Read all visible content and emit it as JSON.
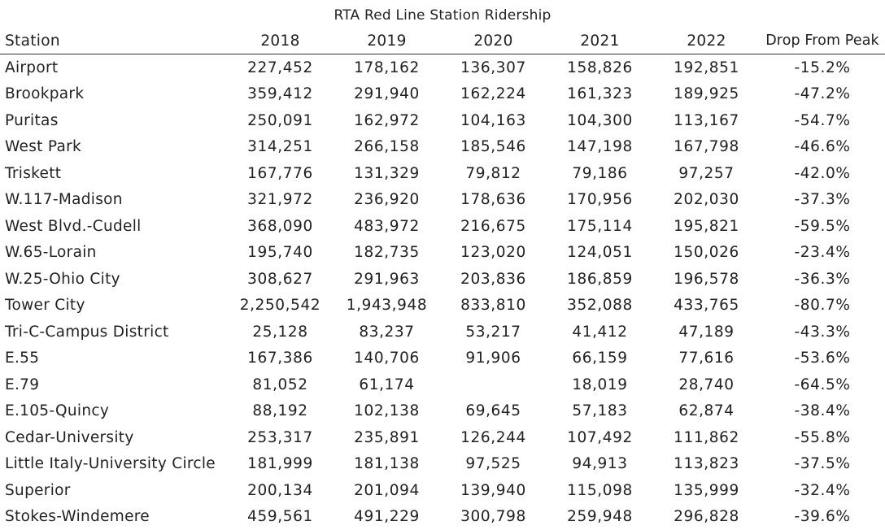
{
  "chart_data": {
    "type": "table",
    "title": "RTA Red Line Station Ridership",
    "columns": [
      "Station",
      "2018",
      "2019",
      "2020",
      "2021",
      "2022",
      "Drop From Peak"
    ],
    "rows": [
      [
        "Airport",
        "227,452",
        "178,162",
        "136,307",
        "158,826",
        "192,851",
        "-15.2%"
      ],
      [
        "Brookpark",
        "359,412",
        "291,940",
        "162,224",
        "161,323",
        "189,925",
        "-47.2%"
      ],
      [
        "Puritas",
        "250,091",
        "162,972",
        "104,163",
        "104,300",
        "113,167",
        "-54.7%"
      ],
      [
        "West Park",
        "314,251",
        "266,158",
        "185,546",
        "147,198",
        "167,798",
        "-46.6%"
      ],
      [
        "Triskett",
        "167,776",
        "131,329",
        "79,812",
        "79,186",
        "97,257",
        "-42.0%"
      ],
      [
        "W.117-Madison",
        "321,972",
        "236,920",
        "178,636",
        "170,956",
        "202,030",
        "-37.3%"
      ],
      [
        "West Blvd.-Cudell",
        "368,090",
        "483,972",
        "216,675",
        "175,114",
        "195,821",
        "-59.5%"
      ],
      [
        "W.65-Lorain",
        "195,740",
        "182,735",
        "123,020",
        "124,051",
        "150,026",
        "-23.4%"
      ],
      [
        "W.25-Ohio City",
        "308,627",
        "291,963",
        "203,836",
        "186,859",
        "196,578",
        "-36.3%"
      ],
      [
        "Tower City",
        "2,250,542",
        "1,943,948",
        "833,810",
        "352,088",
        "433,765",
        "-80.7%"
      ],
      [
        "Tri-C-Campus District",
        "25,128",
        "83,237",
        "53,217",
        "41,412",
        "47,189",
        "-43.3%"
      ],
      [
        "E.55",
        "167,386",
        "140,706",
        "91,906",
        "66,159",
        "77,616",
        "-53.6%"
      ],
      [
        "E.79",
        "81,052",
        "61,174",
        "",
        "18,019",
        "28,740",
        "-64.5%"
      ],
      [
        "E.105-Quincy",
        "88,192",
        "102,138",
        "69,645",
        "57,183",
        "62,874",
        "-38.4%"
      ],
      [
        "Cedar-University",
        "253,317",
        "235,891",
        "126,244",
        "107,492",
        "111,862",
        "-55.8%"
      ],
      [
        "Little Italy-University Circle",
        "181,999",
        "181,138",
        "97,525",
        "94,913",
        "113,823",
        "-37.5%"
      ],
      [
        "Superior",
        "200,134",
        "201,094",
        "139,940",
        "115,098",
        "135,999",
        "-32.4%"
      ],
      [
        "Stokes-Windemere",
        "459,561",
        "491,229",
        "300,798",
        "259,948",
        "296,828",
        "-39.6%"
      ]
    ]
  }
}
